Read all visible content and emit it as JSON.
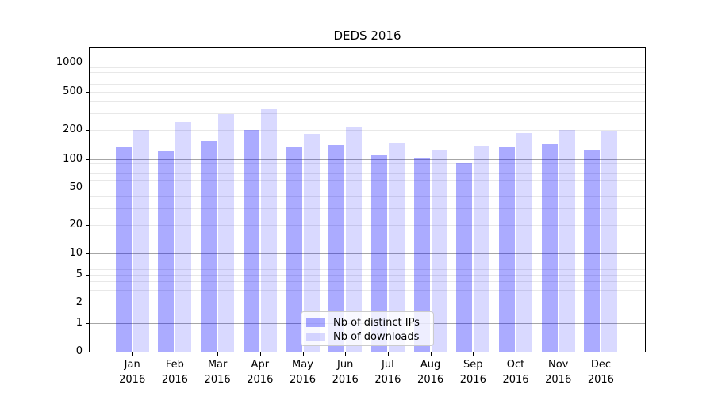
{
  "figure": {
    "background": "#ffffff"
  },
  "chart_data": {
    "type": "bar",
    "title": "DEDS 2016",
    "xlabel": "",
    "ylabel": "",
    "yscale": "symlog",
    "ylim": [
      0,
      1500
    ],
    "grid": true,
    "legend_position": "lower center",
    "categories": [
      "Jan",
      "Feb",
      "Mar",
      "Apr",
      "May",
      "Jun",
      "Jul",
      "Aug",
      "Sep",
      "Oct",
      "Nov",
      "Dec"
    ],
    "x_sublabel": "2016",
    "y_ticks": [
      0,
      1,
      2,
      5,
      10,
      20,
      50,
      100,
      200,
      500,
      1000
    ],
    "series": [
      {
        "name": "Nb of distinct IPs",
        "color": "#0000ff",
        "alpha": 0.33,
        "display_color": "#aaaaff",
        "values": [
          134,
          120,
          155,
          202,
          136,
          140,
          110,
          104,
          91,
          136,
          143,
          126
        ]
      },
      {
        "name": "Nb of downloads",
        "color": "#0000ff",
        "alpha": 0.15,
        "display_color": "#d9d9ff",
        "values": [
          200,
          241,
          296,
          335,
          184,
          215,
          150,
          125,
          137,
          185,
          200,
          192
        ]
      }
    ],
    "axis_color": "#000000",
    "grid_major_color": "#a6a6a6",
    "grid_minor_color": "#e8e8e8"
  }
}
